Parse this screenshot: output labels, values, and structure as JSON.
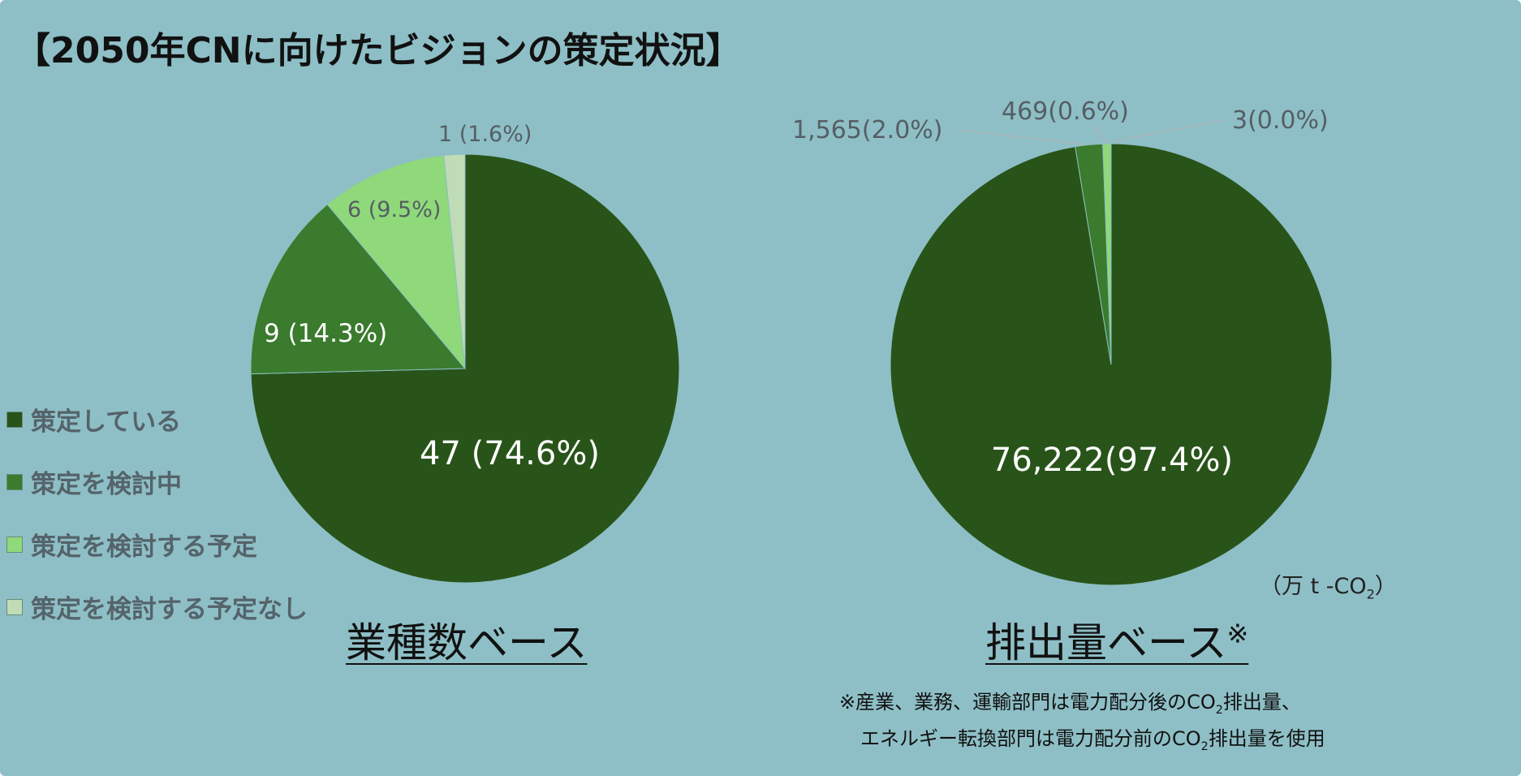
{
  "title": "【2050年CNに向けたビジョンの策定状況】",
  "legend": {
    "items": [
      {
        "label": "策定している",
        "color": "#285419"
      },
      {
        "label": "策定を検討中",
        "color": "#3a7b2d"
      },
      {
        "label": "策定を検討する予定",
        "color": "#8fd97a"
      },
      {
        "label": "策定を検討する予定なし",
        "color": "#bfdcb7"
      }
    ]
  },
  "chart_data": [
    {
      "type": "pie",
      "title": "業種数ベース",
      "categories": [
        "策定している",
        "策定を検討中",
        "策定を検討する予定",
        "策定を検討する予定なし"
      ],
      "values": [
        47,
        9,
        6,
        1
      ],
      "percents": [
        74.6,
        14.3,
        9.5,
        1.6
      ],
      "data_labels": [
        "47 (74.6%)",
        "9 (14.3%)",
        "6 (9.5%)",
        "1 (1.6%)"
      ],
      "colors": [
        "#285419",
        "#3a7b2d",
        "#8fd97a",
        "#bfdcb7"
      ]
    },
    {
      "type": "pie",
      "title": "排出量ベース",
      "title_mark": "※",
      "unit": "（万 t -CO",
      "unit_sub": "2",
      "unit_end": "）",
      "categories": [
        "策定している",
        "策定を検討中",
        "策定を検討する予定",
        "策定を検討する予定なし"
      ],
      "values": [
        76222,
        1565,
        469,
        3
      ],
      "percents": [
        97.4,
        2.0,
        0.6,
        0.0
      ],
      "data_labels": [
        "76,222(97.4%)",
        "1,565(2.0%)",
        "469(0.6%)",
        "3(0.0%)"
      ],
      "colors": [
        "#285419",
        "#3a7b2d",
        "#8fd97a",
        "#bfdcb7"
      ]
    }
  ],
  "footnote": {
    "line1_a": "※産業、業務、運輸部門は電力配分後のCO",
    "line1_sub": "2",
    "line1_b": "排出量、",
    "line2_a": "エネルギー転換部門は電力配分前のCO",
    "line2_sub": "2",
    "line2_b": "排出量を使用"
  }
}
